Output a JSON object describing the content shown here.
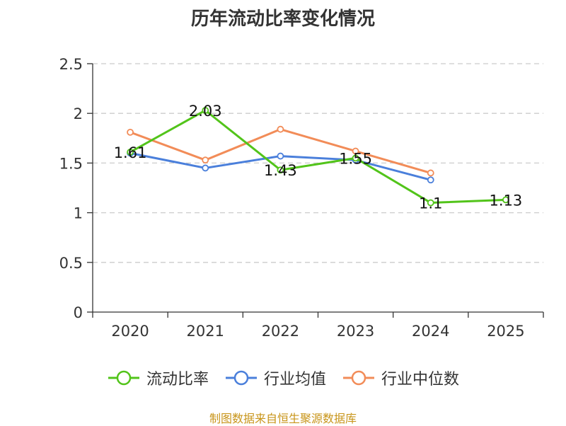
{
  "chart_data": {
    "type": "line",
    "title": "历年流动比率变化情况",
    "categories": [
      "2020",
      "2021",
      "2022",
      "2023",
      "2024",
      "2025"
    ],
    "y_ticks": [
      "0",
      "0.5",
      "1",
      "1.5",
      "2",
      "2.5"
    ],
    "ylim": [
      0,
      2.5
    ],
    "grid": true,
    "legend_position": "bottom",
    "series": [
      {
        "name": "流动比率",
        "color": "#52c41a",
        "values": [
          1.61,
          2.03,
          1.43,
          1.55,
          1.1,
          1.13
        ],
        "labels": [
          "1.61",
          "2.03",
          "1.43",
          "1.55",
          "1.1",
          "1.13"
        ]
      },
      {
        "name": "行业均值",
        "color": "#4a7fdb",
        "values": [
          1.6,
          1.45,
          1.57,
          1.53,
          1.33,
          null
        ]
      },
      {
        "name": "行业中位数",
        "color": "#f28c58",
        "values": [
          1.81,
          1.53,
          1.84,
          1.62,
          1.4,
          null
        ]
      }
    ]
  },
  "footer": {
    "text": "制图数据来自恒生聚源数据库",
    "color": "#c8951a"
  }
}
